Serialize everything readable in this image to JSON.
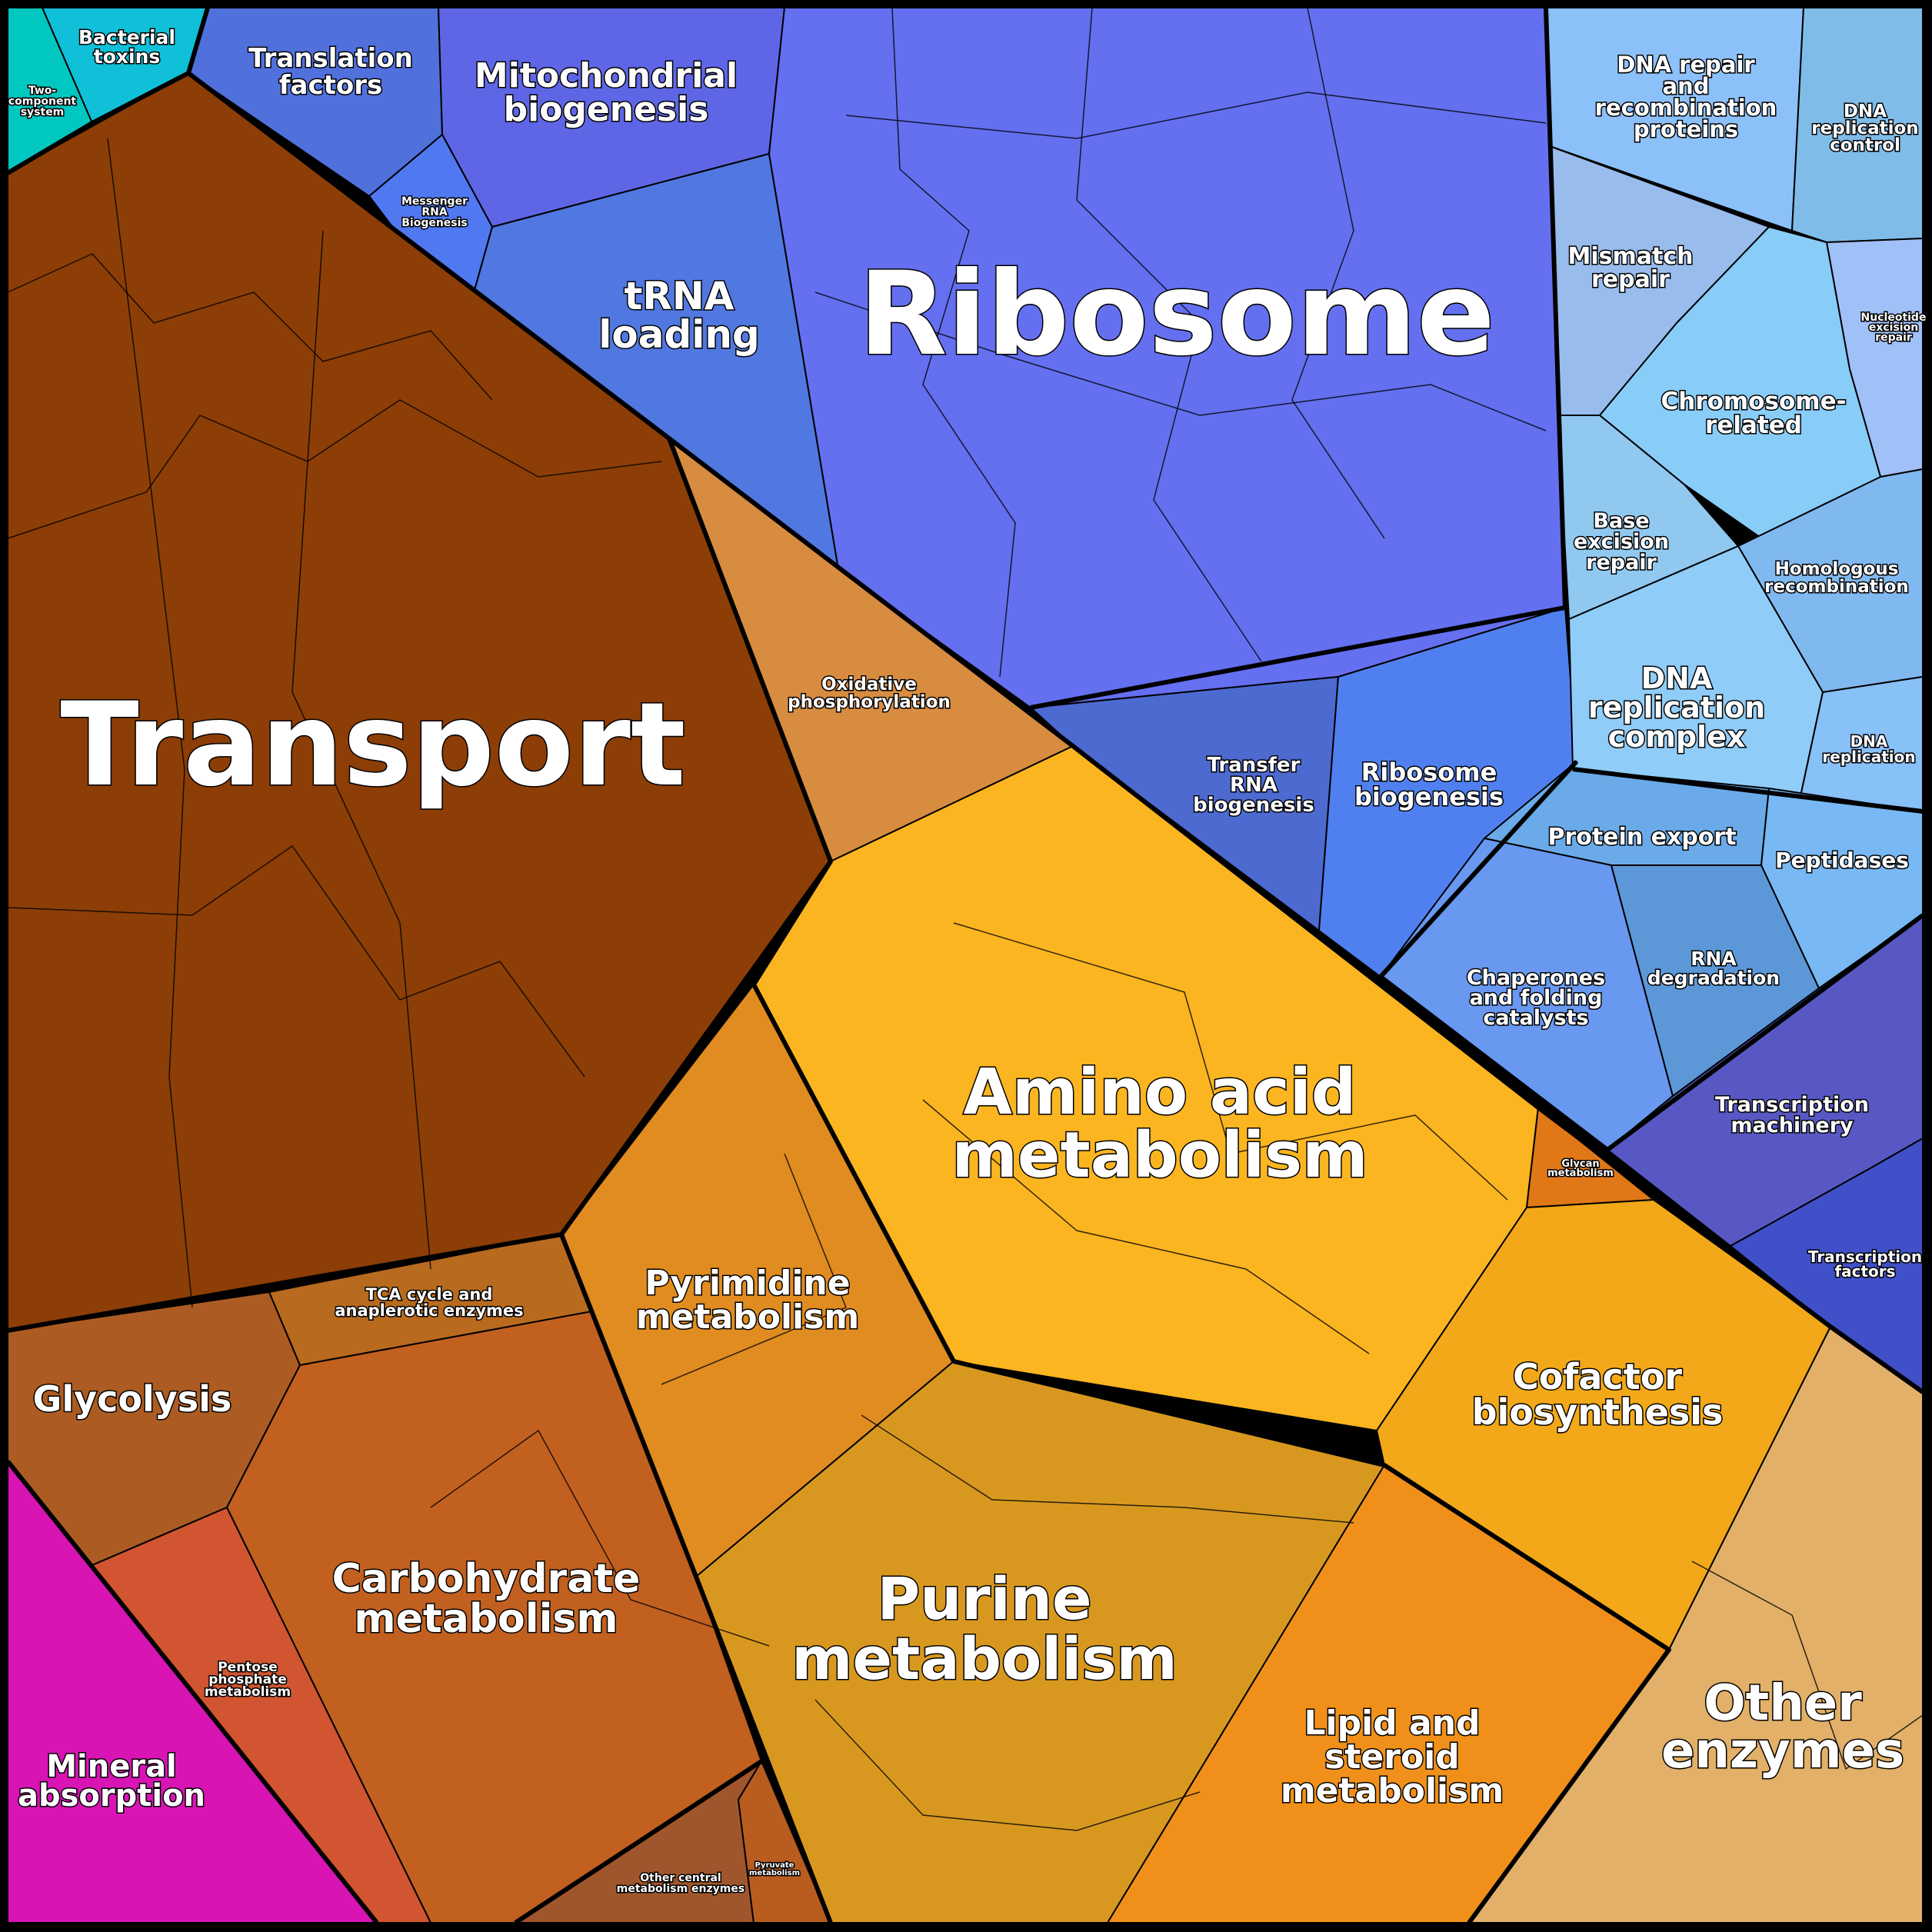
{
  "regions": {
    "two_component": {
      "label": [
        "Two-",
        "component",
        "system"
      ],
      "color": "#00c8c0"
    },
    "bacterial_toxins": {
      "label": [
        "Bacterial",
        "toxins"
      ],
      "color": "#10c0d8"
    },
    "translation_factors": {
      "label": [
        "Translation",
        "factors"
      ],
      "color": "#5070dc"
    },
    "mitochondrial": {
      "label": [
        "Mitochondrial",
        "biogenesis"
      ],
      "color": "#5e66e6"
    },
    "messenger_rna": {
      "label": [
        "Messenger",
        "RNA",
        "Biogenesis"
      ],
      "color": "#5078f0"
    },
    "trna_loading": {
      "label": [
        "tRNA",
        "loading"
      ],
      "color": "#5078e0"
    },
    "ribosome": {
      "label": [
        "Ribosome"
      ],
      "color": "#6470f0"
    },
    "transfer_rna": {
      "label": [
        "Transfer",
        "RNA",
        "biogenesis"
      ],
      "color": "#4c6ad0"
    },
    "ribosome_biogenesis": {
      "label": [
        "Ribosome",
        "biogenesis"
      ],
      "color": "#5080f0"
    },
    "transport": {
      "label": [
        "Transport"
      ],
      "color": "#8c3e06"
    },
    "oxphos": {
      "label": [
        "Oxidative",
        "phosphorylation"
      ],
      "color": "#d88c40"
    },
    "dna_repair": {
      "label": [
        "DNA repair",
        "and",
        "recombination",
        "proteins"
      ],
      "color": "#8cc0f8"
    },
    "dna_replication_control": {
      "label": [
        "DNA",
        "replication",
        "control"
      ],
      "color": "#80bce8"
    },
    "mismatch_repair": {
      "label": [
        "Mismatch",
        "repair"
      ],
      "color": "#98bcec"
    },
    "nucleotide_excision": {
      "label": [
        "Nucleotide",
        "excision",
        "repair"
      ],
      "color": "#a0c0f8"
    },
    "chromosome": {
      "label": [
        "Chromosome-",
        "related"
      ],
      "color": "#88ccf8"
    },
    "base_excision": {
      "label": [
        "Base",
        "excision",
        "repair"
      ],
      "color": "#90c8f0"
    },
    "homologous": {
      "label": [
        "Homologous",
        "recombination"
      ],
      "color": "#80b8f0"
    },
    "dna_replication_complex": {
      "label": [
        "DNA",
        "replication",
        "complex"
      ],
      "color": "#90ccf8"
    },
    "dna_replication": {
      "label": [
        "DNA",
        "replication"
      ],
      "color": "#88c0f8"
    },
    "protein_export": {
      "label": [
        "Protein export"
      ],
      "color": "#6aaae8"
    },
    "peptidases": {
      "label": [
        "Peptidases"
      ],
      "color": "#78b8f4"
    },
    "chaperones": {
      "label": [
        "Chaperones",
        "and folding",
        "catalysts"
      ],
      "color": "#6898f0"
    },
    "rna_degradation": {
      "label": [
        "RNA",
        "degradation"
      ],
      "color": "#5c98d8"
    },
    "transcription_machinery": {
      "label": [
        "Transcription",
        "machinery"
      ],
      "color": "#5858c4"
    },
    "transcription_factors": {
      "label": [
        "Transcription",
        "factors"
      ],
      "color": "#4050c8"
    },
    "amino_acid": {
      "label": [
        "Amino acid",
        "metabolism"
      ],
      "color": "#fbb520"
    },
    "glycan": {
      "label": [
        "Glycan",
        "metabolism"
      ],
      "color": "#e07818"
    },
    "cofactor": {
      "label": [
        "Cofactor",
        "biosynthesis"
      ],
      "color": "#f2a818"
    },
    "pyrimidine": {
      "label": [
        "Pyrimidine",
        "metabolism"
      ],
      "color": "#e08c20"
    },
    "purine": {
      "label": [
        "Purine",
        "metabolism"
      ],
      "color": "#d89820"
    },
    "lipid": {
      "label": [
        "Lipid and",
        "steroid",
        "metabolism"
      ],
      "color": "#f0901a"
    },
    "other_enzymes": {
      "label": [
        "Other",
        "enzymes"
      ],
      "color": "#e2b068"
    },
    "glycolysis": {
      "label": [
        "Glycolysis"
      ],
      "color": "#ac5c22"
    },
    "tca": {
      "label": [
        "TCA cycle and",
        "anaplerotic enzymes"
      ],
      "color": "#b86a1e"
    },
    "carbohydrate": {
      "label": [
        "Carbohydrate",
        "metabolism"
      ],
      "color": "#c26020"
    },
    "pentose": {
      "label": [
        "Pentose",
        "phosphate",
        "metabolism"
      ],
      "color": "#d05530"
    },
    "other_central": {
      "label": [
        "Other central",
        "metabolism enzymes"
      ],
      "color": "#a0562c"
    },
    "pyruvate": {
      "label": [
        "Pyruvate",
        "metabolism"
      ],
      "color": "#b85c20"
    },
    "mineral": {
      "label": [
        "Mineral",
        "absorption"
      ],
      "color": "#d814b4"
    }
  }
}
